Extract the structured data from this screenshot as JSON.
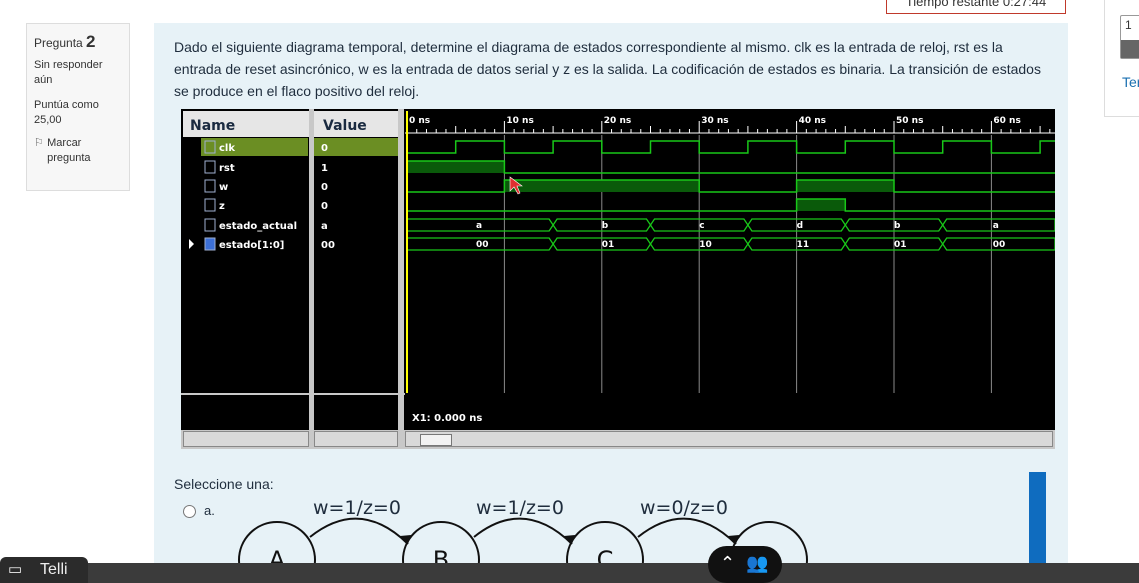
{
  "timer": {
    "label": "Tiempo restante 0:27:44"
  },
  "question_info": {
    "prefix": "Pregunta",
    "number": "2",
    "status": "Sin responder aún",
    "score_label": "Puntúa como",
    "score_value": "25,00",
    "flag_label": "Marcar pregunta"
  },
  "question": {
    "text": "Dado el siguiente diagrama temporal, determine el diagrama de estados correspondiente al mismo. clk es la entrada de reloj, rst es la entrada de reset asincrónico, w es la entrada de datos serial y z es la salida. La codificación de estados es binaria. La transición de estados se produce en el flaco positivo del reloj."
  },
  "waveform": {
    "headers": {
      "name": "Name",
      "value": "Value"
    },
    "signals": [
      {
        "name": "clk",
        "value": "0",
        "icon": "signal-icon"
      },
      {
        "name": "rst",
        "value": "1",
        "icon": "signal-icon"
      },
      {
        "name": "w",
        "value": "0",
        "icon": "signal-icon"
      },
      {
        "name": "z",
        "value": "0",
        "icon": "signal-icon"
      },
      {
        "name": "estado_actual",
        "value": "a",
        "icon": "signal-icon"
      },
      {
        "name": "estado[1:0]",
        "value": "00",
        "icon": "bus-icon"
      }
    ],
    "time_labels": [
      "0 ns",
      "10 ns",
      "20 ns",
      "30 ns",
      "40 ns",
      "50 ns",
      "60 ns"
    ],
    "estado_actual_values": [
      "a",
      "b",
      "c",
      "d",
      "b",
      "a"
    ],
    "estado_values": [
      "00",
      "01",
      "10",
      "11",
      "01",
      "00"
    ],
    "cursor_readout": "X1: 0.000 ns",
    "colors": {
      "background": "#000000",
      "trace": "#19c819",
      "cursor": "#ffff00",
      "highlight": "#6b8e23"
    }
  },
  "answer": {
    "select_label": "Seleccione una:",
    "option_a": "a.",
    "transitions": [
      "w=1/z=0",
      "w=1/z=0",
      "w=0/z=0"
    ],
    "states": [
      "A",
      "B",
      "C",
      ""
    ]
  },
  "right_panel": {
    "number": "1",
    "link": "Ter"
  },
  "bottom": {
    "widget_label": "Telli"
  }
}
